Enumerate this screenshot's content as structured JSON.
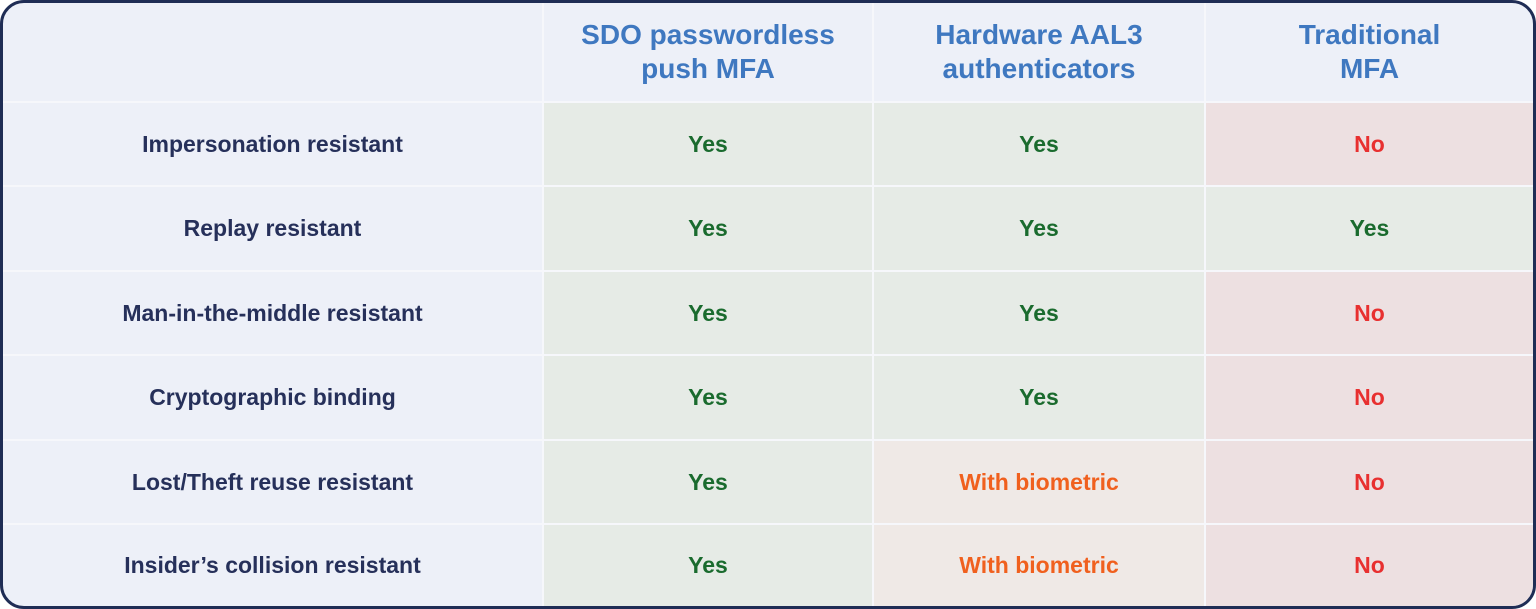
{
  "columns": [
    "",
    "SDO passwordless push MFA",
    "Hardware AAL3 authenticators",
    "Traditional MFA"
  ],
  "header_lines": [
    [
      "SDO passwordless",
      "push MFA"
    ],
    [
      "Hardware AAL3",
      "authenticators"
    ],
    [
      "Traditional",
      "MFA"
    ]
  ],
  "rows": [
    {
      "label": "Impersonation resistant",
      "values": [
        "Yes",
        "Yes",
        "No"
      ],
      "status": [
        "yes",
        "yes",
        "no"
      ]
    },
    {
      "label": "Replay resistant",
      "values": [
        "Yes",
        "Yes",
        "Yes"
      ],
      "status": [
        "yes",
        "yes",
        "yes"
      ]
    },
    {
      "label": "Man-in-the-middle resistant",
      "values": [
        "Yes",
        "Yes",
        "No"
      ],
      "status": [
        "yes",
        "yes",
        "no"
      ]
    },
    {
      "label": "Cryptographic binding",
      "values": [
        "Yes",
        "Yes",
        "No"
      ],
      "status": [
        "yes",
        "yes",
        "no"
      ]
    },
    {
      "label": "Lost/Theft reuse resistant",
      "values": [
        "Yes",
        "With biometric",
        "No"
      ],
      "status": [
        "yes",
        "partial",
        "no"
      ]
    },
    {
      "label": "Insider’s collision resistant",
      "values": [
        "Yes",
        "With biometric",
        "No"
      ],
      "status": [
        "yes",
        "partial",
        "no"
      ]
    }
  ],
  "colors": {
    "border": "#1f2d55",
    "header_text": "#3f78c0",
    "label_text": "#26305a",
    "yes": "#1a6b2e",
    "no": "#e83030",
    "partial": "#f0601e"
  }
}
